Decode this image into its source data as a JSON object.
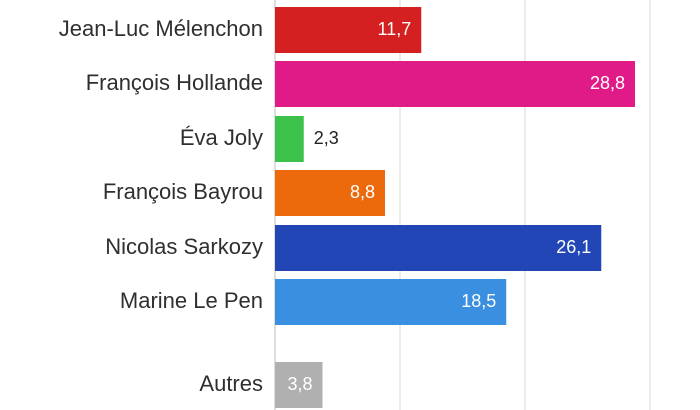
{
  "chart_data": {
    "type": "bar",
    "orientation": "horizontal",
    "categories": [
      "Jean-Luc Mélenchon",
      "François Hollande",
      "Éva Joly",
      "François Bayrou",
      "Nicolas Sarkozy",
      "Marine Le Pen",
      "Autres"
    ],
    "values": [
      11.7,
      28.8,
      2.3,
      8.8,
      26.1,
      18.5,
      3.8
    ],
    "value_labels": [
      "11,7",
      "28,8",
      "2,3",
      "8,8",
      "26,1",
      "18,5",
      "3,8"
    ],
    "colors": [
      "#d42020",
      "#e01a86",
      "#3cc24b",
      "#ec6a0c",
      "#2246b5",
      "#3b8fe0",
      "#b0b0b0"
    ],
    "value_label_colors": [
      "#ffffff",
      "#ffffff",
      "#222222",
      "#ffffff",
      "#ffffff",
      "#ffffff",
      "#ffffff"
    ],
    "value_label_inside": [
      true,
      true,
      false,
      true,
      true,
      true,
      true
    ],
    "xlim": [
      0,
      30
    ],
    "grid": true,
    "gap_before_last": true,
    "title": "",
    "xlabel": "",
    "ylabel": ""
  }
}
